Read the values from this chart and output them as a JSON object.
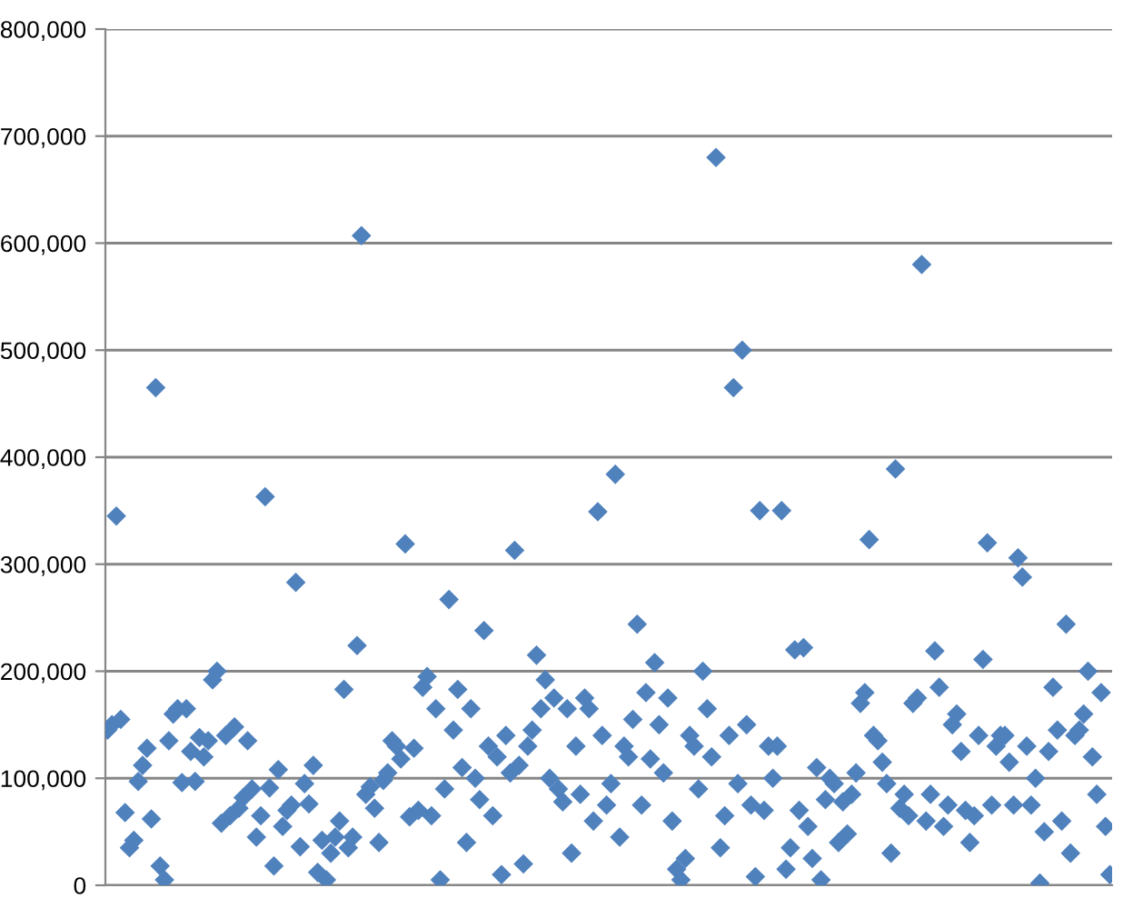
{
  "chart_data": {
    "type": "scatter",
    "marker": "diamond",
    "grid": "y",
    "tick_labels": "y",
    "ylim": [
      0,
      800000
    ],
    "yticks": [
      {
        "value": 0,
        "label": "0"
      },
      {
        "value": 100000,
        "label": "100,000"
      },
      {
        "value": 200000,
        "label": "200,000"
      },
      {
        "value": 300000,
        "label": "300,000"
      },
      {
        "value": 400000,
        "label": "400,000"
      },
      {
        "value": 500000,
        "label": "500,000"
      },
      {
        "value": 600000,
        "label": "600,000"
      },
      {
        "value": 700000,
        "label": "700,000"
      },
      {
        "value": 800000,
        "label": "800,000"
      }
    ],
    "categories": [
      null,
      null,
      null,
      null,
      null,
      null,
      null,
      null,
      null,
      null,
      null,
      null,
      null,
      null,
      null,
      null,
      null,
      null,
      null,
      null,
      null,
      null,
      null,
      null,
      null,
      null,
      null,
      null,
      null,
      null,
      null,
      null,
      null,
      null,
      null,
      null,
      null,
      null,
      null,
      null,
      null,
      null,
      null,
      null,
      null,
      null,
      null,
      null,
      null,
      null,
      null,
      null,
      null,
      null,
      null,
      null,
      null,
      null,
      null,
      null,
      null,
      null,
      null,
      null,
      null,
      null,
      null,
      null,
      null,
      null,
      null,
      null,
      null,
      null,
      null,
      null,
      null,
      null,
      null,
      null,
      null,
      null,
      null,
      null,
      null,
      null,
      null,
      null,
      null,
      null,
      null,
      null,
      null,
      null,
      null,
      null,
      null,
      null,
      null,
      null,
      null,
      null,
      null,
      null,
      null,
      null,
      null,
      null,
      null,
      null,
      null,
      null,
      null,
      null,
      null,
      null,
      null,
      null,
      null,
      null,
      null,
      null,
      null,
      null,
      null,
      null,
      null,
      null,
      null,
      null,
      null,
      null,
      null,
      null,
      null,
      null,
      null,
      null,
      null,
      null,
      null,
      null,
      null,
      null,
      null,
      null,
      null,
      null,
      null,
      null,
      null,
      null,
      null,
      null,
      null,
      null,
      null,
      null,
      null,
      null,
      null,
      null,
      null,
      null,
      null,
      null,
      null,
      null,
      null,
      null,
      null,
      null,
      null,
      null,
      null,
      null,
      null,
      null,
      null,
      null,
      null,
      null,
      null,
      null,
      null,
      null,
      null,
      null,
      null,
      null,
      null,
      null,
      null,
      null,
      null,
      null,
      null,
      null,
      null,
      null,
      null,
      null,
      null,
      null,
      null,
      null,
      null,
      null,
      null,
      null,
      null,
      null,
      null,
      null,
      null,
      null,
      null,
      null,
      null,
      null,
      null,
      null,
      null,
      null,
      null,
      null,
      null,
      null,
      null,
      null
    ],
    "series": [
      {
        "color": "#4f81bd",
        "values": [
          145000,
          150000,
          345000,
          155000,
          68000,
          35000,
          42000,
          97000,
          112000,
          128000,
          62000,
          465000,
          18000,
          5000,
          135000,
          160000,
          165000,
          96000,
          165000,
          125000,
          97000,
          138000,
          120000,
          135000,
          192000,
          200000,
          58000,
          140000,
          65000,
          148000,
          72000,
          82000,
          135000,
          90000,
          45000,
          65000,
          363000,
          91000,
          18000,
          108000,
          55000,
          70000,
          75000,
          283000,
          36000,
          95000,
          76000,
          112000,
          12000,
          42000,
          5000,
          30000,
          45000,
          60000,
          183000,
          35000,
          45000,
          224000,
          607000,
          85000,
          92000,
          72000,
          40000,
          98000,
          105000,
          135000,
          130000,
          118000,
          319000,
          64000,
          128000,
          70000,
          185000,
          195000,
          65000,
          165000,
          5000,
          90000,
          267000,
          145000,
          183000,
          110000,
          40000,
          165000,
          100000,
          80000,
          238000,
          130000,
          65000,
          120000,
          10000,
          140000,
          105000,
          313000,
          112000,
          20000,
          130000,
          145000,
          215000,
          165000,
          192000,
          100000,
          175000,
          90000,
          78000,
          165000,
          30000,
          130000,
          85000,
          175000,
          165000,
          60000,
          349000,
          140000,
          75000,
          95000,
          384000,
          45000,
          130000,
          120000,
          155000,
          244000,
          75000,
          180000,
          118000,
          208000,
          150000,
          105000,
          175000,
          60000,
          15000,
          5000,
          25000,
          140000,
          130000,
          90000,
          200000,
          165000,
          120000,
          680000,
          35000,
          65000,
          140000,
          465000,
          95000,
          500000,
          150000,
          75000,
          8000,
          350000,
          70000,
          130000,
          100000,
          130000,
          350000,
          15000,
          35000,
          220000,
          70000,
          222000,
          55000,
          25000,
          110000,
          5000,
          80000,
          100000,
          95000,
          40000,
          78000,
          48000,
          85000,
          105000,
          170000,
          180000,
          323000,
          140000,
          135000,
          115000,
          95000,
          30000,
          389000,
          72000,
          85000,
          65000,
          170000,
          175000,
          580000,
          60000,
          85000,
          219000,
          185000,
          55000,
          75000,
          150000,
          160000,
          125000,
          70000,
          40000,
          65000,
          140000,
          211000,
          320000,
          75000,
          130000,
          140000,
          140000,
          115000,
          75000,
          306000,
          288000,
          130000,
          75000,
          100000,
          2000,
          50000,
          125000,
          185000,
          145000,
          60000,
          244000,
          30000,
          140000,
          145000,
          160000,
          200000,
          120000,
          85000,
          180000,
          55000,
          10000
        ]
      }
    ]
  }
}
